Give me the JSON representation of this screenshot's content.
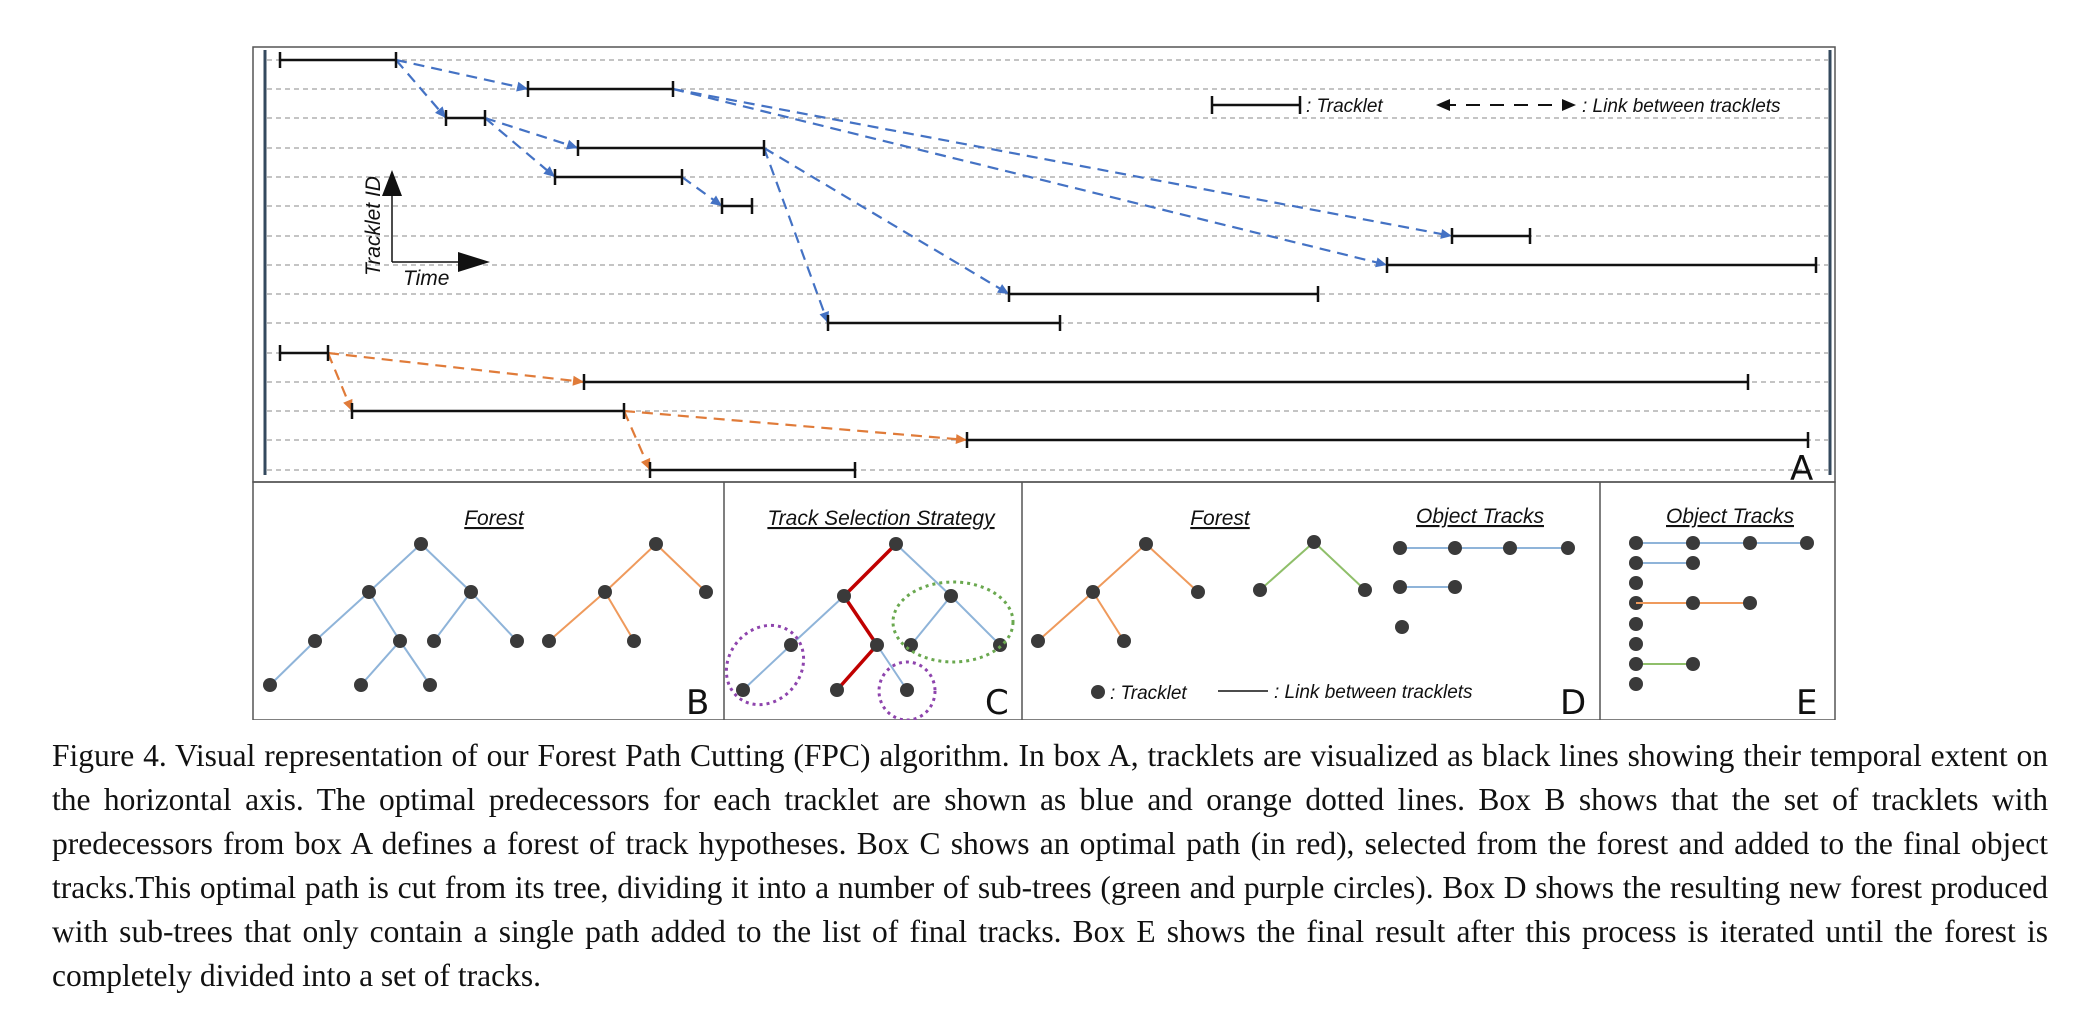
{
  "panels": {
    "A": {
      "letter": "A"
    },
    "B": {
      "letter": "B",
      "title": "Forest"
    },
    "C": {
      "letter": "C",
      "title": "Track Selection Strategy"
    },
    "D": {
      "letter": "D",
      "title_forest": "Forest",
      "title_tracks": "Object Tracks"
    },
    "E": {
      "letter": "E",
      "title": "Object Tracks"
    }
  },
  "legend_A": {
    "tracklet": ": Tracklet",
    "link": ": Link between tracklets"
  },
  "legend_D": {
    "tracklet": ": Tracklet",
    "link": ": Link between tracklets"
  },
  "axes": {
    "y_label": "Tracklet ID",
    "x_label": "Time"
  },
  "colors": {
    "tracklet": "#111111",
    "blue_link": "#4472c4",
    "orange_link": "#e07b39",
    "tree_blue": "#8fb4d9",
    "tree_orange": "#ef9a5c",
    "tree_green": "#8fbf6a",
    "selected_path": "#c00000",
    "subtree_green": "#6aa84f",
    "subtree_purple": "#8e44ad",
    "node": "#3a3a3a",
    "grid": "#888888"
  },
  "caption": "Figure 4. Visual representation of our Forest Path Cutting (FPC) algorithm. In box A, tracklets are visualized as black lines showing their temporal extent on the horizontal axis. The optimal predecessors for each tracklet are shown as blue and orange dotted lines. Box B shows that the set of tracklets with predecessors from box A defines a forest of track hypotheses. Box C shows an optimal path (in red), selected from the forest and added to the final object tracks.This optimal path is cut from its tree, dividing it into a number of sub-trees (green and purple circles). Box D shows the resulting new forest produced with sub-trees that only contain a single path added to the list of final tracks. Box E shows the final result after this process is iterated until the forest is completely divided into a set of tracks."
}
